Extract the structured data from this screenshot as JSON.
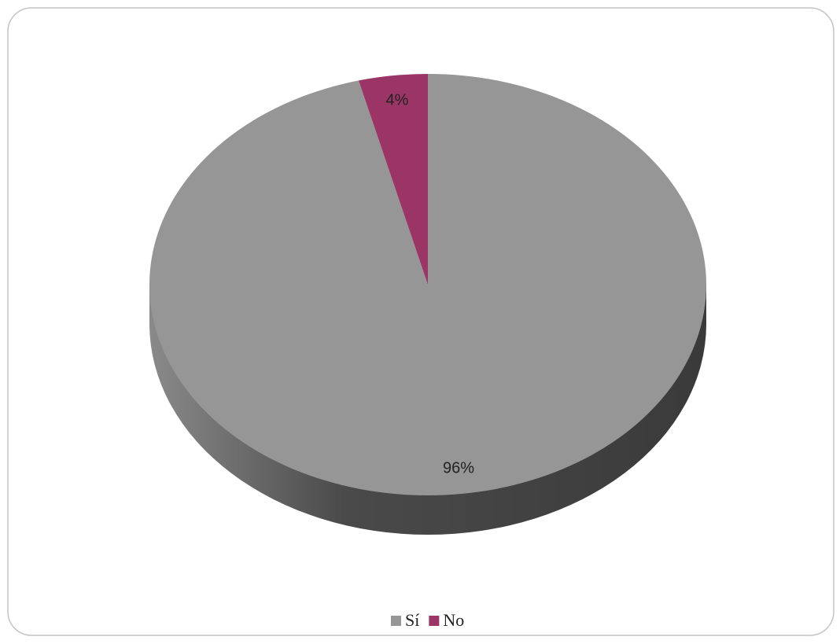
{
  "chart_data": {
    "type": "pie",
    "categories": [
      "Sí",
      "No"
    ],
    "values": [
      96,
      4
    ],
    "value_labels": [
      "96%",
      "4%"
    ],
    "colors": [
      "#969696",
      "#9b3565"
    ],
    "legend": "bottom"
  }
}
